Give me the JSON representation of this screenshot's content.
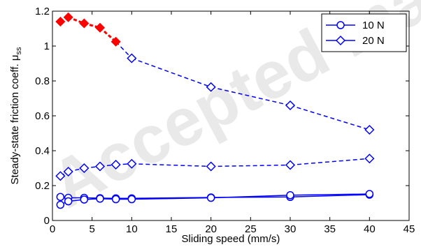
{
  "watermark_text": "Accepted manuscript",
  "chart_data": {
    "type": "line",
    "xlabel": "Sliding speed (mm/s)",
    "ylabel_main": "Steady-state friction coeff. μ",
    "ylabel_sub": "ss",
    "xlim": [
      0,
      45
    ],
    "ylim": [
      0,
      1.2
    ],
    "xticks": [
      0,
      5,
      10,
      15,
      20,
      25,
      30,
      35,
      40,
      45
    ],
    "yticks": [
      0,
      0.2,
      0.4,
      0.6,
      0.8,
      1,
      1.2
    ],
    "ytick_labels": [
      "0",
      "0.2",
      "0.4",
      "0.6",
      "0.8",
      "1",
      "1.2"
    ],
    "legend_position": "top-right",
    "grid": false,
    "colors": {
      "series": "#0000ff",
      "highlight": "#ff0000"
    },
    "legend": [
      {
        "label": "10 N",
        "marker": "circle"
      },
      {
        "label": "20 N",
        "marker": "diamond"
      }
    ],
    "series": [
      {
        "name": "10 N",
        "marker": "circle",
        "line": "solid",
        "x": [
          1,
          2,
          4,
          6,
          8,
          10,
          20,
          30,
          40
        ],
        "y": [
          0.135,
          0.13,
          0.13,
          0.128,
          0.127,
          0.127,
          0.132,
          0.135,
          0.148
        ]
      },
      {
        "name": "10 N",
        "marker": "circle",
        "line": "solid",
        "x": [
          1,
          2,
          4,
          6,
          8,
          10,
          20,
          30,
          40
        ],
        "y": [
          0.09,
          0.11,
          0.12,
          0.125,
          0.122,
          0.122,
          0.13,
          0.145,
          0.152
        ]
      },
      {
        "name": "20 N",
        "marker": "diamond",
        "line": "dashed",
        "x": [
          1,
          2,
          4,
          6,
          8,
          10,
          20,
          30,
          40
        ],
        "y": [
          0.255,
          0.28,
          0.3,
          0.31,
          0.32,
          0.325,
          0.31,
          0.318,
          0.355
        ]
      },
      {
        "name": "20 N",
        "marker": "diamond",
        "line": "dashed",
        "x": [
          1,
          2,
          4,
          6,
          8,
          10,
          20,
          30,
          40
        ],
        "y": [
          1.14,
          1.165,
          1.13,
          1.105,
          1.025,
          0.93,
          0.765,
          0.66,
          0.52
        ],
        "highlighted_points": 5
      }
    ]
  }
}
